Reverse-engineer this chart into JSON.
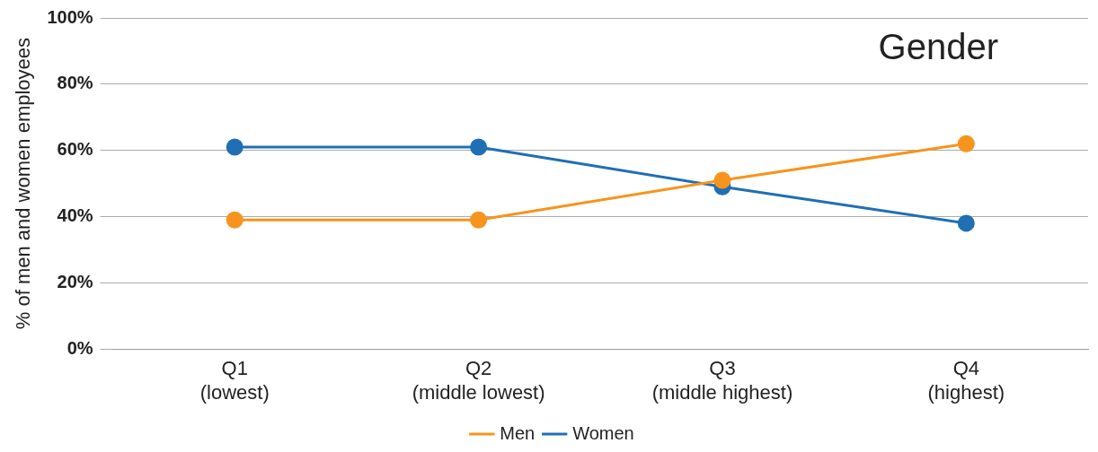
{
  "chart_data": {
    "type": "line",
    "title": "Gender",
    "ylabel": "% of men and women employees",
    "categories": [
      "Q1\n(lowest)",
      "Q2\n(middle lowest)",
      "Q3\n(middle highest)",
      "Q4\n(highest)"
    ],
    "series": [
      {
        "name": "Women",
        "color": "#1f6fb5",
        "values": [
          61,
          61,
          49,
          38
        ]
      },
      {
        "name": "Men",
        "color": "#f7941d",
        "values": [
          39,
          39,
          51,
          62
        ]
      }
    ],
    "ylim": [
      0,
      100
    ],
    "yticks": [
      {
        "value": 0,
        "label": "0%"
      },
      {
        "value": 20,
        "label": "20%"
      },
      {
        "value": 40,
        "label": "40%"
      },
      {
        "value": 60,
        "label": "60%"
      },
      {
        "value": 80,
        "label": "80%"
      },
      {
        "value": 100,
        "label": "100%"
      }
    ],
    "grid": "y",
    "legend": "bottom",
    "marker": "circle",
    "line_style": "solid"
  }
}
